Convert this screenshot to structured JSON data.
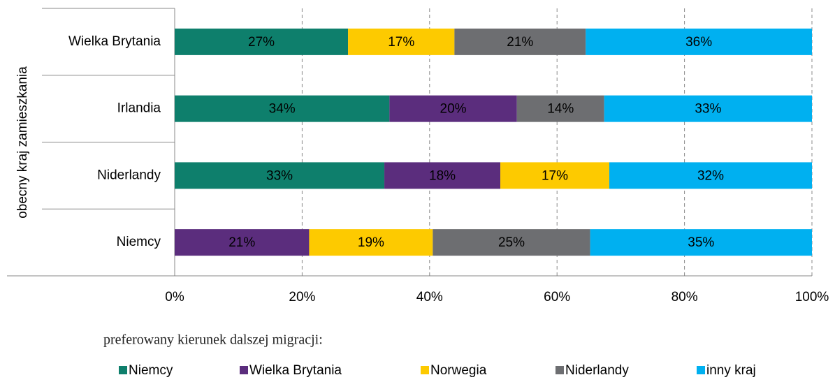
{
  "chart_data": {
    "type": "stacked-bar-horizontal",
    "y_axis_label": "obecny kraj zamieszkania",
    "legend_title": "preferowany kierunek dalszej migracji:",
    "categories": [
      "Wielka Brytania",
      "Irlandia",
      "Niderlandy",
      "Niemcy"
    ],
    "series": [
      {
        "name": "Niemcy",
        "color": "#0e7f6c",
        "values": [
          27.2,
          33.7,
          32.9,
          null
        ],
        "value_labels": [
          "27%",
          "34%",
          "33%",
          null
        ]
      },
      {
        "name": "Wielka Brytania",
        "color": "#5b2d7d",
        "values": [
          null,
          20.0,
          18.2,
          21.1
        ],
        "value_labels": [
          null,
          "20%",
          "18%",
          "21%"
        ]
      },
      {
        "name": "Norwegia",
        "color": "#fdca00",
        "values": [
          16.7,
          null,
          17.1,
          19.4
        ],
        "value_labels": [
          "17%",
          null,
          "17%",
          "19%"
        ]
      },
      {
        "name": "Niderlandy",
        "color": "#6d6e71",
        "values": [
          20.6,
          13.7,
          null,
          24.7
        ],
        "value_labels": [
          "21%",
          "14%",
          null,
          "25%"
        ]
      },
      {
        "name": "inny kraj",
        "color": "#00b0f0",
        "values": [
          35.5,
          32.6,
          31.8,
          34.8
        ],
        "value_labels": [
          "36%",
          "33%",
          "32%",
          "35%"
        ]
      }
    ],
    "xlim": [
      0,
      100
    ],
    "xticks": [
      {
        "value": 0,
        "label": "0%"
      },
      {
        "value": 20,
        "label": "20%"
      },
      {
        "value": 40,
        "label": "40%"
      },
      {
        "value": 60,
        "label": "60%"
      },
      {
        "value": 80,
        "label": "80%"
      },
      {
        "value": 100,
        "label": "100%"
      }
    ],
    "grid": true,
    "legend_position": "bottom"
  }
}
